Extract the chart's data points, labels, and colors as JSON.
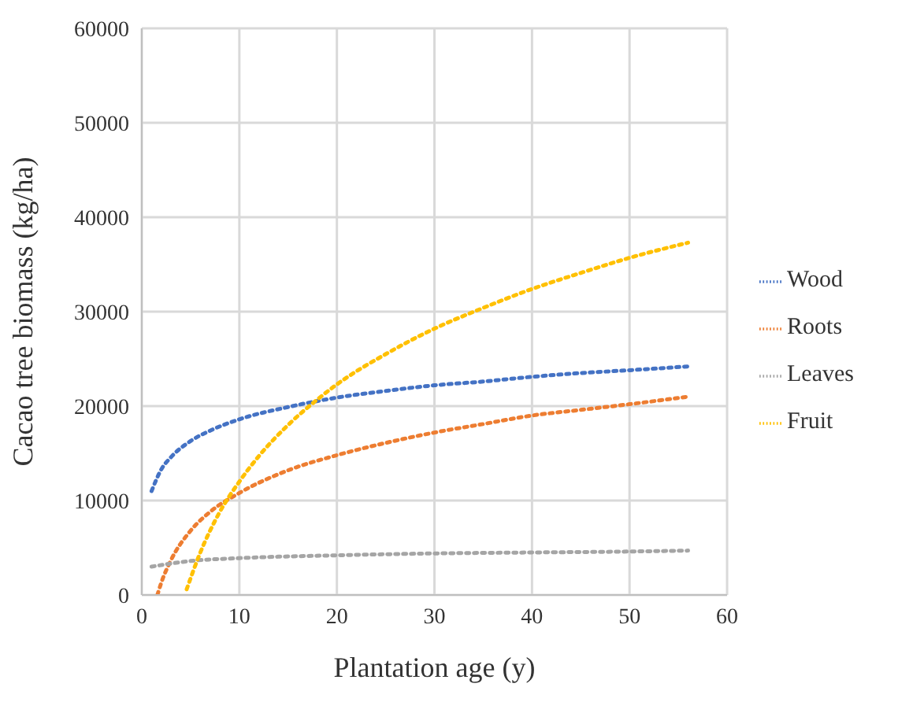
{
  "chart_data": {
    "type": "line",
    "xlabel": "Plantation age (y)",
    "ylabel": "Cacao tree biomass (kg/ha)",
    "xlim": [
      0,
      60
    ],
    "xticks": [
      0,
      10,
      20,
      30,
      40,
      50,
      60
    ],
    "ylim": [
      0,
      60000
    ],
    "yticks": [
      0,
      10000,
      20000,
      30000,
      40000,
      50000,
      60000
    ],
    "grid": true,
    "legend": "right",
    "marker": "none",
    "line_style": "dotted",
    "series": [
      {
        "name": "Wood",
        "color": "#4472c4",
        "x": [
          1,
          2,
          3,
          5,
          7,
          10,
          15,
          20,
          25,
          30,
          35,
          40,
          45,
          50,
          56
        ],
        "values": [
          11000,
          13300,
          14600,
          16300,
          17400,
          18600,
          19900,
          20900,
          21600,
          22200,
          22600,
          23100,
          23500,
          23800,
          24200
        ]
      },
      {
        "name": "Roots",
        "color": "#ed7d31",
        "x": [
          1.6,
          2,
          3,
          5,
          7,
          10,
          15,
          20,
          25,
          30,
          35,
          40,
          45,
          50,
          56
        ],
        "values": [
          0,
          1300,
          3700,
          6800,
          8800,
          10800,
          13200,
          14800,
          16100,
          17200,
          18100,
          19000,
          19600,
          20200,
          21000
        ]
      },
      {
        "name": "Leaves",
        "color": "#a5a5a5",
        "x": [
          1,
          5,
          10,
          20,
          30,
          40,
          50,
          56
        ],
        "values": [
          3000,
          3600,
          3900,
          4200,
          4400,
          4500,
          4600,
          4700
        ]
      },
      {
        "name": "Fruit",
        "color": "#ffc000",
        "x": [
          4.6,
          6,
          8,
          10,
          12,
          15,
          18,
          20,
          25,
          30,
          35,
          40,
          45,
          50,
          56
        ],
        "values": [
          600,
          4500,
          8800,
          12000,
          14700,
          18000,
          20700,
          22300,
          25500,
          28200,
          30400,
          32400,
          34100,
          35700,
          37300
        ]
      }
    ]
  }
}
